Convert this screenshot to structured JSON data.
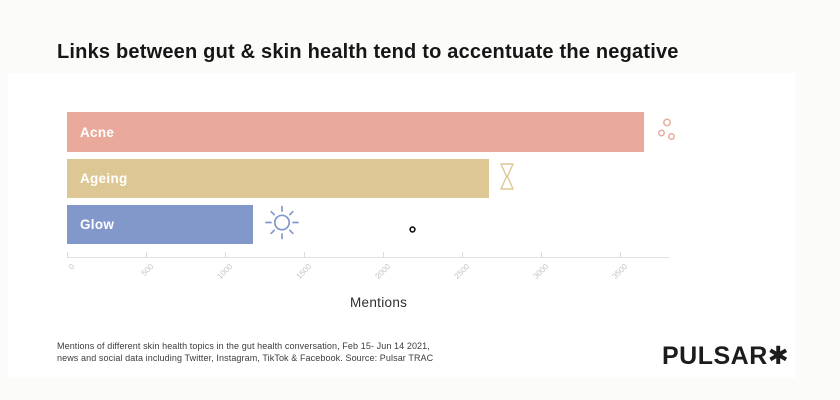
{
  "title": "Links between gut & skin health tend to accentuate the negative",
  "chart_data": {
    "type": "bar",
    "orientation": "horizontal",
    "categories": [
      "Acne",
      "Ageing",
      "Glow"
    ],
    "values": [
      3650,
      2670,
      1180
    ],
    "bar_colors": [
      "#e9aa9c",
      "#ddc794",
      "#8298cb"
    ],
    "icons": [
      "bubbles-icon",
      "hourglass-icon",
      "sun-icon"
    ],
    "xlabel": "Mentions",
    "x_ticks": [
      0,
      500,
      1000,
      1500,
      2000,
      2500,
      3000,
      3500
    ],
    "xlim": [
      0,
      3815
    ],
    "grid": false,
    "legend": "none",
    "bar_label_color": "#ffffff"
  },
  "footer": {
    "line1": "Mentions of different skin health topics in the gut health conversation, Feb 15- Jun 14 2021,",
    "line2": "news and social data including Twitter, Instagram, TikTok & Facebook. Source: Pulsar TRAC"
  },
  "logo": {
    "text": "PULSAR✱"
  },
  "colors": {
    "background": "#fbfcf9",
    "card": "#ffffff",
    "axis": "#e3e3e3",
    "tick_label": "#c4c4c4",
    "title": "#161616"
  }
}
